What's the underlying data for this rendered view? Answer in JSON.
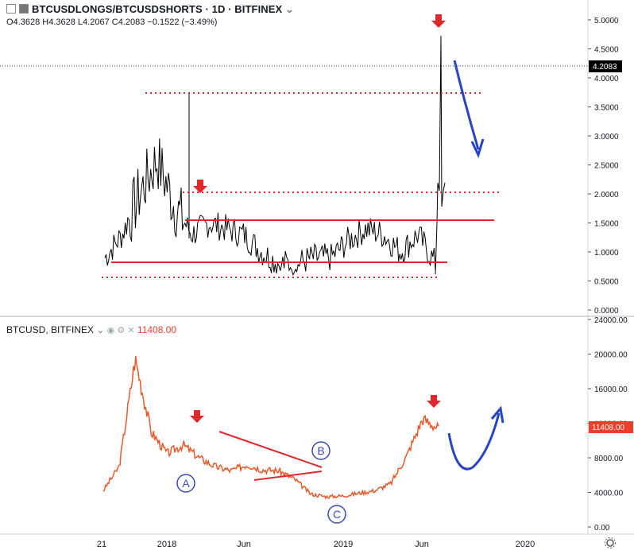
{
  "top_panel": {
    "title": "BTCUSDLONGS/BTCUSDSHORTS",
    "interval": "1D",
    "exchange": "BITFINEX",
    "ohlc": {
      "o": "O4.3628",
      "h": "H4.3628",
      "l": "L4.2067",
      "c": "C4.2083",
      "change": "−0.1522 (−3.49%)"
    },
    "last_price": "4.2083",
    "y_ticks": [
      "5.0000",
      "4.5000",
      "4.0000",
      "3.5000",
      "3.0000",
      "2.5000",
      "2.0000",
      "1.5000",
      "1.0000",
      "0.5000",
      "0.0000"
    ]
  },
  "bottom_panel": {
    "title": "BTCUSD, BITFINEX",
    "last_price": "11408.00",
    "y_ticks": [
      "24000.00",
      "20000.00",
      "16000.00",
      "12000.00",
      "8000.00",
      "4000.00",
      "0.00"
    ]
  },
  "x_ticks": [
    "21",
    "2018",
    "Jun",
    "2019",
    "Jun",
    "2020"
  ],
  "wave_labels": [
    "A",
    "B",
    "C"
  ],
  "colors": {
    "price": "#e8582a",
    "ratio": "#000000",
    "level": "#e0272b",
    "arrow_red": "#e0272b",
    "arrow_blue": "#2545c8",
    "label": "#3a4bb6"
  },
  "chart_data": [
    {
      "type": "line",
      "name": "BTCUSDLONGS/BTCUSDSHORTS",
      "ylim": [
        0,
        5.3
      ],
      "x": [
        "2017-11",
        "2017-12",
        "2018-01",
        "2018-02",
        "2018-03",
        "2018-04",
        "2018-05",
        "2018-06",
        "2018-07",
        "2018-08",
        "2018-09",
        "2018-10",
        "2018-11",
        "2018-12",
        "2019-01",
        "2019-02",
        "2019-03",
        "2019-04",
        "2019-05",
        "2019-06",
        "2019-07",
        "2019-08"
      ],
      "values": [
        0.9,
        1.3,
        2.0,
        2.6,
        1.8,
        1.3,
        1.5,
        1.4,
        1.3,
        1.0,
        0.8,
        0.8,
        0.9,
        0.9,
        1.2,
        1.4,
        1.3,
        1.0,
        1.3,
        0.8,
        2.0,
        4.2
      ],
      "levels": {
        "dotted": [
          3.75,
          2.03,
          0.58
        ],
        "solid": [
          1.55,
          0.82
        ]
      }
    },
    {
      "type": "line",
      "name": "BTCUSD",
      "ylim": [
        0,
        24000
      ],
      "x": [
        "2017-11",
        "2017-12",
        "2018-01",
        "2018-02",
        "2018-03",
        "2018-04",
        "2018-05",
        "2018-06",
        "2018-07",
        "2018-08",
        "2018-09",
        "2018-10",
        "2018-11",
        "2018-12",
        "2019-01",
        "2019-02",
        "2019-03",
        "2019-04",
        "2019-05",
        "2019-06",
        "2019-07",
        "2019-08"
      ],
      "values": [
        4200,
        7000,
        19500,
        11000,
        8500,
        9500,
        8000,
        7000,
        6500,
        7200,
        6600,
        6500,
        5500,
        3800,
        3500,
        3600,
        3900,
        4200,
        5000,
        8200,
        12500,
        11408
      ]
    }
  ]
}
